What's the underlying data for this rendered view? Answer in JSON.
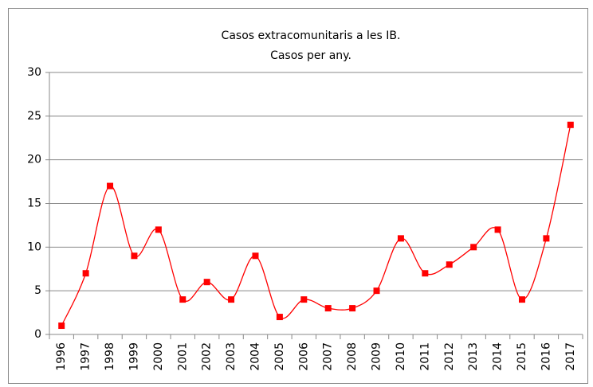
{
  "chart_data": {
    "type": "line",
    "title": "Casos extracomunitaris a les IB.",
    "subtitle": "Casos per any.",
    "categories": [
      "1996",
      "1997",
      "1998",
      "1999",
      "2000",
      "2001",
      "2002",
      "2003",
      "2004",
      "2005",
      "2006",
      "2007",
      "2008",
      "2009",
      "2010",
      "2011",
      "2012",
      "2013",
      "2014",
      "2015",
      "2016",
      "2017"
    ],
    "series": [
      {
        "name": "Casos",
        "color": "#ff0000",
        "values": [
          1,
          7,
          17,
          9,
          12,
          4,
          6,
          4,
          9,
          2,
          4,
          3,
          3,
          5,
          11,
          7,
          8,
          10,
          12,
          4,
          11,
          24
        ]
      }
    ],
    "ylim": [
      0,
      30
    ],
    "yticks": [
      0,
      5,
      10,
      15,
      20,
      25,
      30
    ],
    "grid": true
  }
}
